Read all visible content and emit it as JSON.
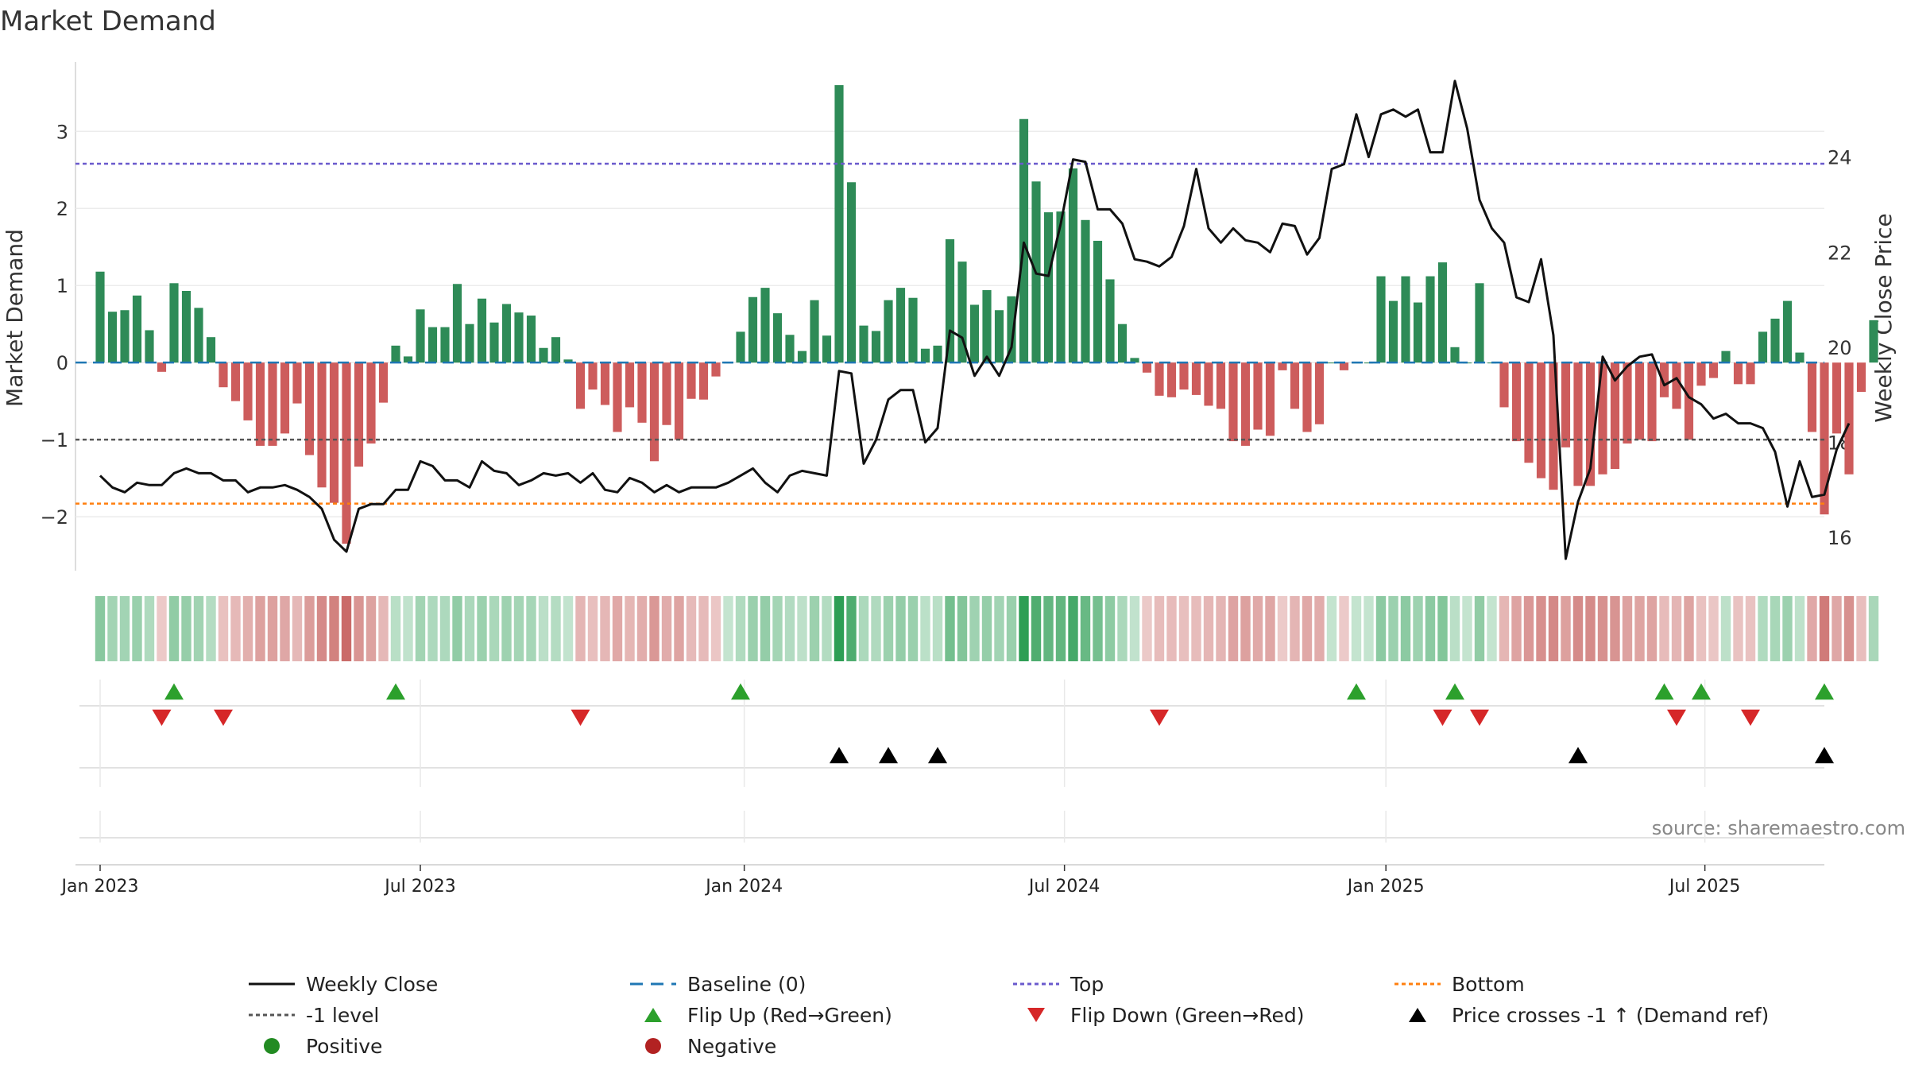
{
  "chart_data": {
    "type": "bar",
    "title": "Market Demand",
    "ylabel": "Market Demand",
    "y2label": "Weekly Close Price",
    "source": "source: sharemaestro.com",
    "ylim": [
      -2.7,
      3.9
    ],
    "y2lim": [
      15.3,
      26.0
    ],
    "yticks": [
      -2,
      -1,
      0,
      1,
      2,
      3
    ],
    "ytick_labels": [
      "−2",
      "−1",
      "0",
      "1",
      "2",
      "3"
    ],
    "y2ticks": [
      16,
      18,
      20,
      22,
      24
    ],
    "x_start_week": -2,
    "x_end_week": 140,
    "xticks": [
      {
        "week": 0,
        "label": "Jan 2023"
      },
      {
        "week": 26,
        "label": "Jul 2023"
      },
      {
        "week": 52.3,
        "label": "Jan 2024"
      },
      {
        "week": 78.3,
        "label": "Jul 2024"
      },
      {
        "week": 104.4,
        "label": "Jan 2025"
      },
      {
        "week": 130.3,
        "label": "Jul 2025"
      }
    ],
    "reference_lines": {
      "top": 2.58,
      "minus_one": -1.0,
      "bottom": -1.83,
      "baseline": 0
    },
    "demand": [
      1.18,
      0.66,
      0.68,
      0.87,
      0.42,
      -0.12,
      1.03,
      0.93,
      0.71,
      0.33,
      -0.32,
      -0.5,
      -0.75,
      -1.08,
      -1.08,
      -0.92,
      -0.53,
      -1.2,
      -1.62,
      -1.82,
      -2.35,
      -1.35,
      -1.05,
      -0.52,
      0.22,
      0.08,
      0.69,
      0.46,
      0.46,
      1.02,
      0.5,
      0.83,
      0.52,
      0.76,
      0.65,
      0.61,
      0.19,
      0.33,
      0.04,
      -0.6,
      -0.35,
      -0.55,
      -0.9,
      -0.58,
      -0.78,
      -1.28,
      -0.81,
      -1.0,
      -0.47,
      -0.48,
      -0.18,
      0.0,
      0.4,
      0.85,
      0.97,
      0.64,
      0.36,
      0.15,
      0.81,
      0.35,
      3.6,
      2.34,
      0.48,
      0.41,
      0.81,
      0.97,
      0.84,
      0.18,
      0.22,
      1.6,
      1.31,
      0.75,
      0.94,
      0.68,
      0.86,
      3.16,
      2.35,
      1.95,
      1.96,
      2.52,
      1.85,
      1.58,
      1.08,
      0.5,
      0.06,
      -0.13,
      -0.43,
      -0.45,
      -0.35,
      -0.42,
      -0.56,
      -0.6,
      -1.02,
      -1.08,
      -0.87,
      -0.95,
      -0.1,
      -0.6,
      -0.9,
      -0.8,
      0.0,
      -0.1,
      0.0,
      0.0,
      1.12,
      0.8,
      1.12,
      0.78,
      1.12,
      1.3,
      0.2,
      0.0,
      1.03,
      0.0,
      -0.58,
      -1.02,
      -1.3,
      -1.5,
      -1.65,
      -1.1,
      -1.6,
      -1.6,
      -1.45,
      -1.38,
      -1.05,
      -1.0,
      -1.02,
      -0.45,
      -0.6,
      -1.0,
      -0.3,
      -0.2,
      0.15,
      -0.28,
      -0.28,
      0.4,
      0.57,
      0.8,
      0.13,
      -0.9,
      -1.97,
      -0.92,
      -1.45,
      -0.38,
      0.55
    ],
    "price": [
      17.3,
      17.05,
      16.95,
      17.15,
      17.1,
      17.1,
      17.35,
      17.45,
      17.35,
      17.35,
      17.2,
      17.2,
      16.95,
      17.05,
      17.05,
      17.1,
      17.0,
      16.85,
      16.6,
      15.95,
      15.7,
      16.6,
      16.7,
      16.7,
      17.0,
      17.0,
      17.6,
      17.5,
      17.2,
      17.2,
      17.05,
      17.6,
      17.4,
      17.35,
      17.1,
      17.2,
      17.35,
      17.3,
      17.35,
      17.15,
      17.35,
      17.0,
      16.95,
      17.25,
      17.15,
      16.95,
      17.1,
      16.95,
      17.05,
      17.05,
      17.05,
      17.15,
      17.3,
      17.45,
      17.15,
      16.95,
      17.3,
      17.4,
      17.35,
      17.3,
      19.5,
      19.45,
      17.55,
      18.05,
      18.9,
      19.1,
      19.1,
      18.0,
      18.3,
      20.35,
      20.2,
      19.4,
      19.8,
      19.4,
      20.0,
      22.2,
      21.55,
      21.5,
      22.6,
      23.95,
      23.9,
      22.9,
      22.9,
      22.6,
      21.85,
      21.8,
      21.7,
      21.9,
      22.55,
      23.75,
      22.5,
      22.2,
      22.5,
      22.25,
      22.2,
      22.0,
      22.6,
      22.55,
      21.95,
      22.3,
      23.75,
      23.85,
      24.9,
      24.0,
      24.9,
      25.0,
      24.85,
      25.0,
      24.1,
      24.1,
      25.6,
      24.6,
      23.1,
      22.5,
      22.2,
      21.05,
      20.95,
      21.85,
      20.25,
      15.55,
      16.75,
      17.45,
      19.8,
      19.3,
      19.6,
      19.8,
      19.85,
      19.2,
      19.35,
      18.95,
      18.8,
      18.5,
      18.6,
      18.4,
      18.4,
      18.3,
      17.8,
      16.65,
      17.6,
      16.85,
      16.9,
      17.85,
      18.4
    ],
    "flip_up_weeks": [
      6,
      24,
      52,
      102,
      110,
      127,
      130,
      140
    ],
    "flip_down_weeks": [
      5,
      10,
      39,
      86,
      109,
      112,
      128,
      134
    ],
    "cross_weeks": [
      60,
      64,
      68,
      120,
      140
    ],
    "legend": [
      {
        "key": "weekly_close",
        "label": "Weekly Close"
      },
      {
        "key": "baseline",
        "label": "Baseline (0)"
      },
      {
        "key": "top",
        "label": "Top"
      },
      {
        "key": "bottom",
        "label": "Bottom"
      },
      {
        "key": "minus_one",
        "label": "-1 level"
      },
      {
        "key": "flip_up",
        "label": "Flip Up (Red→Green)"
      },
      {
        "key": "flip_down",
        "label": "Flip Down (Green→Red)"
      },
      {
        "key": "price_cross",
        "label": "Price crosses -1 ↑ (Demand ref)"
      },
      {
        "key": "positive",
        "label": "Positive"
      },
      {
        "key": "negative",
        "label": "Negative"
      }
    ],
    "colors": {
      "positive": "#2e8b57",
      "negative": "#cd5c5c",
      "price": "#111111",
      "baseline": "#1f77b4",
      "top": "#6a5acd",
      "bottom": "#ff7f0e",
      "minus_one": "#555555",
      "flip_up": "#2ca02c",
      "flip_down": "#d62728",
      "cross": "#000000",
      "legend_positive": "#228b22",
      "legend_negative": "#b22222"
    }
  }
}
